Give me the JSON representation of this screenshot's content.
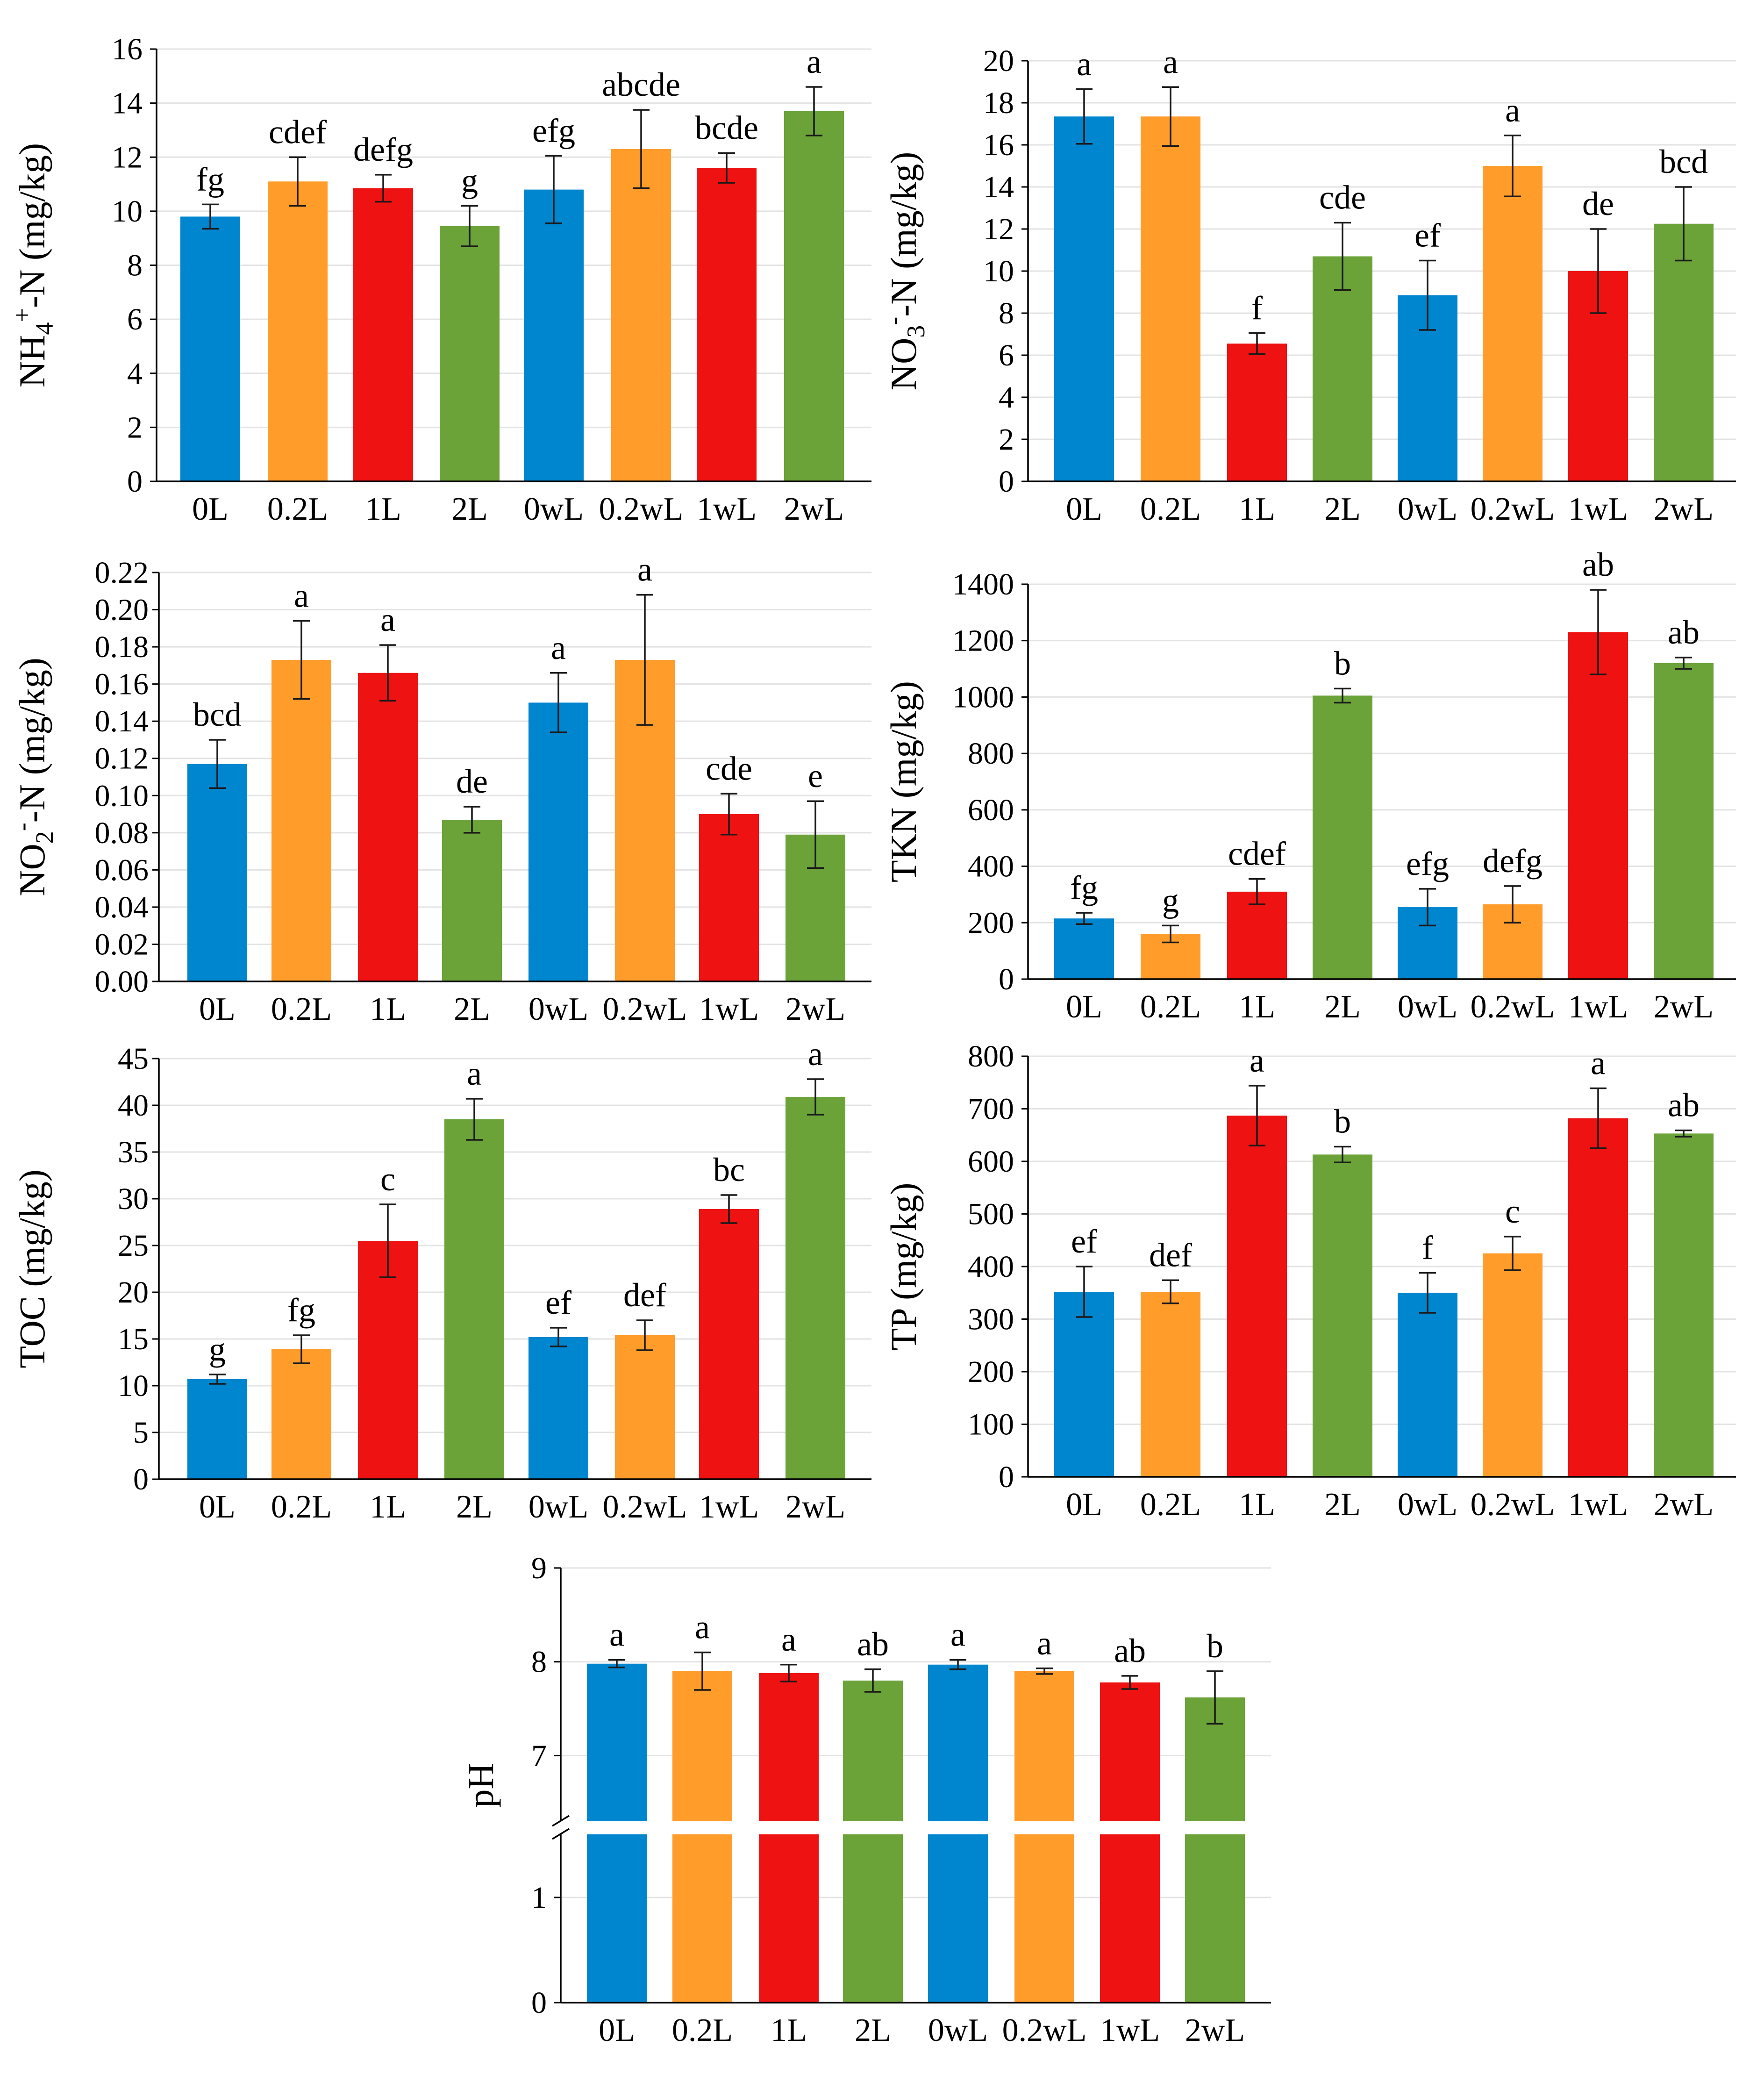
{
  "colors": {
    "blue": "#0085cf",
    "orange": "#ff9c2a",
    "red": "#ee1212",
    "green": "#6ba339"
  },
  "chart_data": [
    {
      "type": "bar",
      "ylabel": "NH4+-N (mg/kg)",
      "ylabel_parts": {
        "pre": "NH",
        "sub": "4",
        "sup": "+",
        "post": "-N (mg/kg)"
      },
      "categories": [
        "0L",
        "0.2L",
        "1L",
        "2L",
        "0wL",
        "0.2wL",
        "1wL",
        "2wL"
      ],
      "values": [
        9.8,
        11.1,
        10.85,
        9.45,
        10.8,
        12.3,
        11.6,
        13.7
      ],
      "errors": [
        0.45,
        0.9,
        0.5,
        0.75,
        1.25,
        1.45,
        0.55,
        0.9
      ],
      "labels": [
        "fg",
        "cdef",
        "defg",
        "g",
        "efg",
        "abcde",
        "bcde",
        "a"
      ],
      "yticks": [
        "0",
        "2",
        "4",
        "6",
        "8",
        "10",
        "12",
        "14",
        "16"
      ],
      "ylim": [
        0,
        16
      ]
    },
    {
      "type": "bar",
      "ylabel": "NO3--N (mg/kg)",
      "ylabel_parts": {
        "pre": "NO",
        "sub": "3",
        "sup": "-",
        "post": "-N (mg/kg)"
      },
      "categories": [
        "0L",
        "0.2L",
        "1L",
        "2L",
        "0wL",
        "0.2wL",
        "1wL",
        "2wL"
      ],
      "values": [
        17.35,
        17.35,
        6.55,
        10.7,
        8.85,
        15.0,
        10.0,
        12.25
      ],
      "errors": [
        1.3,
        1.4,
        0.5,
        1.6,
        1.65,
        1.45,
        2.0,
        1.75
      ],
      "labels": [
        "a",
        "a",
        "f",
        "cde",
        "ef",
        "a",
        "de",
        "bcd"
      ],
      "yticks": [
        "0",
        "2",
        "4",
        "6",
        "8",
        "10",
        "12",
        "14",
        "16",
        "18",
        "20"
      ],
      "ylim": [
        0,
        20
      ]
    },
    {
      "type": "bar",
      "ylabel": "NO2--N (mg/kg)",
      "ylabel_parts": {
        "pre": "NO",
        "sub": "2",
        "sup": "-",
        "post": "-N (mg/kg)"
      },
      "categories": [
        "0L",
        "0.2L",
        "1L",
        "2L",
        "0wL",
        "0.2wL",
        "1wL",
        "2wL"
      ],
      "values": [
        0.117,
        0.173,
        0.166,
        0.087,
        0.15,
        0.173,
        0.09,
        0.079
      ],
      "errors": [
        0.013,
        0.021,
        0.015,
        0.007,
        0.016,
        0.035,
        0.011,
        0.018
      ],
      "labels": [
        "bcd",
        "a",
        "a",
        "de",
        "a",
        "a",
        "cde",
        "e"
      ],
      "yticks": [
        "0.00",
        "0.02",
        "0.04",
        "0.06",
        "0.08",
        "0.10",
        "0.12",
        "0.14",
        "0.16",
        "0.18",
        "0.20",
        "0.22"
      ],
      "ylim": [
        0,
        0.22
      ]
    },
    {
      "type": "bar",
      "ylabel": "TKN (mg/kg)",
      "categories": [
        "0L",
        "0.2L",
        "1L",
        "2L",
        "0wL",
        "0.2wL",
        "1wL",
        "2wL"
      ],
      "values": [
        215,
        160,
        310,
        1005,
        255,
        265,
        1230,
        1120
      ],
      "errors": [
        20,
        30,
        45,
        25,
        65,
        65,
        150,
        20
      ],
      "labels": [
        "fg",
        "g",
        "cdef",
        "b",
        "efg",
        "defg",
        "ab",
        "ab"
      ],
      "yticks": [
        "0",
        "200",
        "400",
        "600",
        "800",
        "1000",
        "1200",
        "1400"
      ],
      "ylim": [
        0,
        1400
      ]
    },
    {
      "type": "bar",
      "ylabel": "TOC (mg/kg)",
      "categories": [
        "0L",
        "0.2L",
        "1L",
        "2L",
        "0wL",
        "0.2wL",
        "1wL",
        "2wL"
      ],
      "values": [
        10.7,
        13.9,
        25.5,
        38.5,
        15.2,
        15.4,
        28.9,
        40.9
      ],
      "errors": [
        0.5,
        1.5,
        3.9,
        2.2,
        1.0,
        1.6,
        1.5,
        1.9
      ],
      "labels": [
        "g",
        "fg",
        "c",
        "a",
        "ef",
        "def",
        "bc",
        "a"
      ],
      "yticks": [
        "0",
        "5",
        "10",
        "15",
        "20",
        "25",
        "30",
        "35",
        "40",
        "45"
      ],
      "ylim": [
        0,
        45
      ]
    },
    {
      "type": "bar",
      "ylabel": "TP (mg/kg)",
      "categories": [
        "0L",
        "0.2L",
        "1L",
        "2L",
        "0wL",
        "0.2wL",
        "1wL",
        "2wL"
      ],
      "values": [
        352,
        352,
        687,
        613,
        350,
        425,
        682,
        653
      ],
      "errors": [
        48,
        22,
        57,
        15,
        38,
        32,
        57,
        6
      ],
      "labels": [
        "ef",
        "def",
        "a",
        "b",
        "f",
        "c",
        "a",
        "ab"
      ],
      "yticks": [
        "0",
        "100",
        "200",
        "300",
        "400",
        "500",
        "600",
        "700",
        "800"
      ],
      "ylim": [
        0,
        800
      ]
    },
    {
      "type": "bar",
      "ylabel": "pH",
      "axis_break": [
        1.6,
        6.3
      ],
      "categories": [
        "0L",
        "0.2L",
        "1L",
        "2L",
        "0wL",
        "0.2wL",
        "1wL",
        "2wL"
      ],
      "values": [
        7.98,
        7.9,
        7.88,
        7.8,
        7.97,
        7.9,
        7.78,
        7.62
      ],
      "errors": [
        0.04,
        0.2,
        0.09,
        0.12,
        0.05,
        0.03,
        0.07,
        0.28
      ],
      "labels": [
        "a",
        "a",
        "a",
        "ab",
        "a",
        "a",
        "ab",
        "b"
      ],
      "yticks": [
        "0",
        "1",
        "7",
        "8",
        "9"
      ],
      "ytick_values": [
        0,
        1,
        7,
        8,
        9
      ],
      "ylim": [
        0,
        9
      ]
    }
  ]
}
